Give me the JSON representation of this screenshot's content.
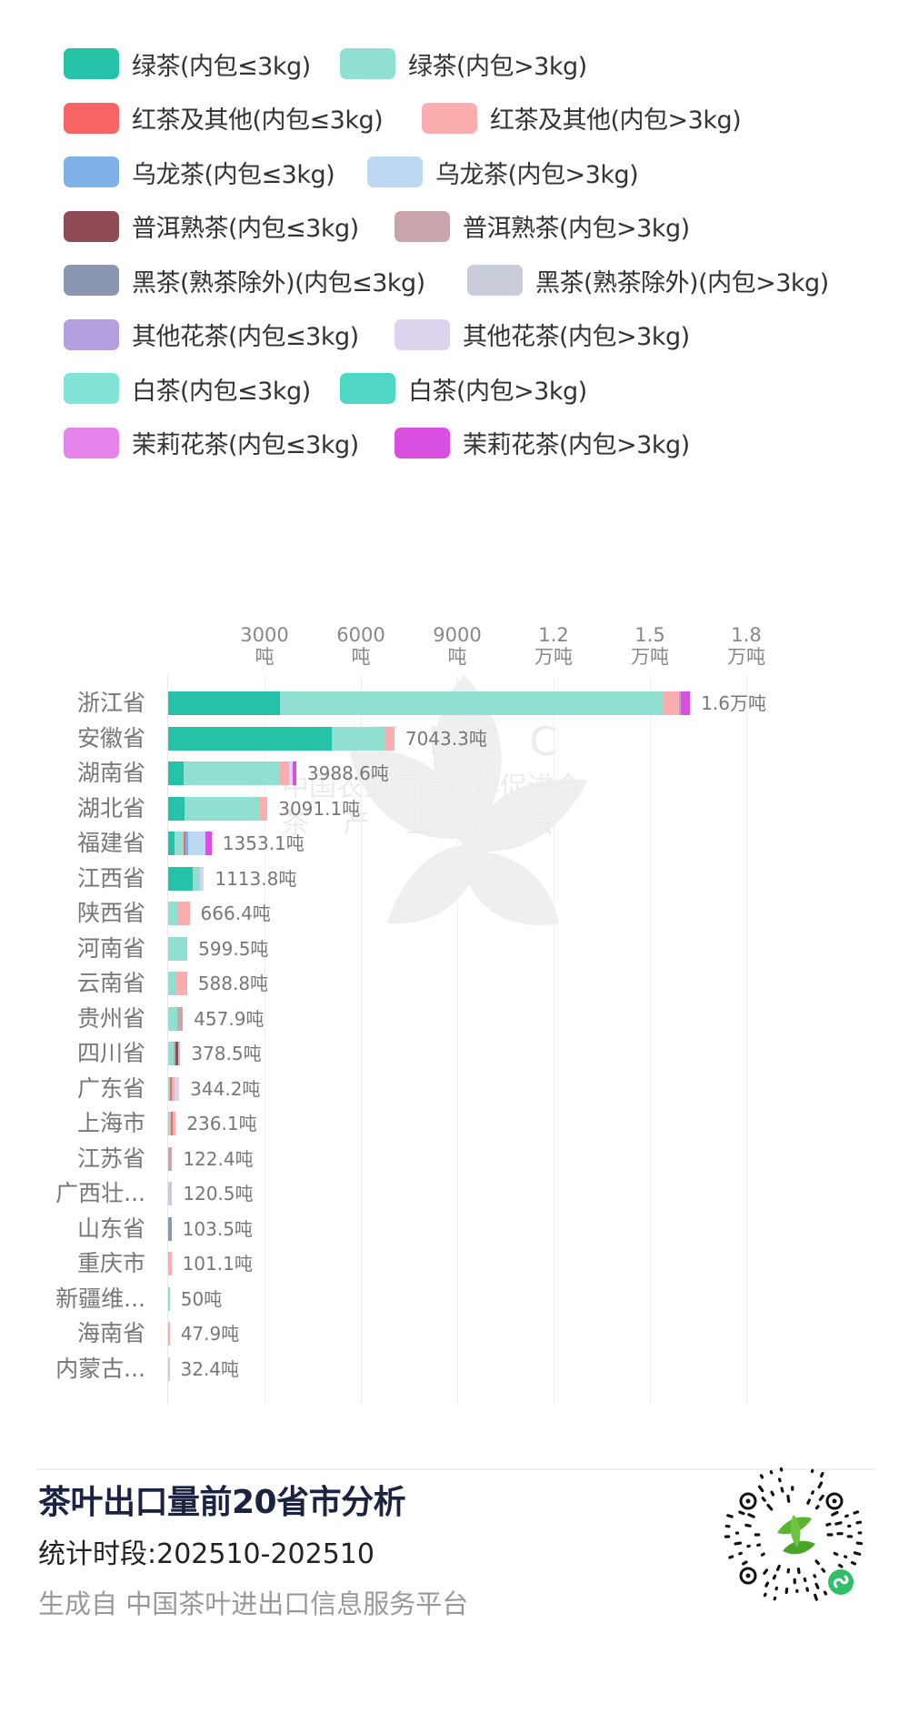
{
  "legend": [
    [
      {
        "label": "绿茶(内包≤3kg)",
        "color": "#26c2a8",
        "x": 0
      },
      {
        "label": "绿茶(内包>3kg)",
        "color": "#8fe0d0",
        "x": 304
      }
    ],
    [
      {
        "label": "红茶及其他(内包≤3kg)",
        "color": "#f96565",
        "x": 0
      },
      {
        "label": "红茶及其他(内包>3kg)",
        "color": "#fcaeae",
        "x": 394
      }
    ],
    [
      {
        "label": "乌龙茶(内包≤3kg)",
        "color": "#7eb2e6",
        "x": 0
      },
      {
        "label": "乌龙茶(内包>3kg)",
        "color": "#bdd8f2",
        "x": 334
      }
    ],
    [
      {
        "label": "普洱熟茶(内包≤3kg)",
        "color": "#8f4c57",
        "x": 0
      },
      {
        "label": "普洱熟茶(内包>3kg)",
        "color": "#c9a4aa",
        "x": 364
      }
    ],
    [
      {
        "label": "黑茶(熟茶除外)(内包≤3kg)",
        "color": "#8b97b2",
        "x": 0
      },
      {
        "label": "黑茶(熟茶除外)(内包>3kg)",
        "color": "#c8ccd9",
        "x": 444
      }
    ],
    [
      {
        "label": "其他花茶(内包≤3kg)",
        "color": "#b49fe0",
        "x": 0
      },
      {
        "label": "其他花茶(内包>3kg)",
        "color": "#dcd3ee",
        "x": 364
      }
    ],
    [
      {
        "label": "白茶(内包≤3kg)",
        "color": "#82e4d6",
        "x": 0
      },
      {
        "label": "白茶(内包>3kg)",
        "color": "#4dd7c4",
        "x": 304
      }
    ],
    [
      {
        "label": "茉莉花茶(内包≤3kg)",
        "color": "#e584ea",
        "x": 0
      },
      {
        "label": "茉莉花茶(内包>3kg)",
        "color": "#d94fe0",
        "x": 364
      }
    ]
  ],
  "watermark": {
    "abbr": "T  I  C  C",
    "org": "中国农业国际合作促进会",
    "branch": "茶  产  业  分  会"
  },
  "chart_data": {
    "type": "bar",
    "orientation": "horizontal",
    "stacked": true,
    "title": "茶叶出口量前20省市分析",
    "xlabel": "",
    "ylabel": "",
    "unit": "吨",
    "xlim": [
      0,
      18000
    ],
    "grid": true,
    "x_ticks": [
      {
        "value": 3000,
        "line1": "3000",
        "line2": "吨"
      },
      {
        "value": 6000,
        "line1": "6000",
        "line2": "吨"
      },
      {
        "value": 9000,
        "line1": "9000",
        "line2": "吨"
      },
      {
        "value": 12000,
        "line1": "1.2",
        "line2": "万吨"
      },
      {
        "value": 15000,
        "line1": "1.5",
        "line2": "万吨"
      },
      {
        "value": 18000,
        "line1": "1.8",
        "line2": "万吨"
      }
    ],
    "legend_position": "top",
    "series_names": [
      "绿茶(内包≤3kg)",
      "绿茶(内包>3kg)",
      "红茶及其他(内包≤3kg)",
      "红茶及其他(内包>3kg)",
      "乌龙茶(内包≤3kg)",
      "乌龙茶(内包>3kg)",
      "普洱熟茶(内包≤3kg)",
      "普洱熟茶(内包>3kg)",
      "黑茶(熟茶除外)(内包≤3kg)",
      "黑茶(熟茶除外)(内包>3kg)",
      "其他花茶(内包≤3kg)",
      "其他花茶(内包>3kg)",
      "白茶(内包≤3kg)",
      "白茶(内包>3kg)",
      "茉莉花茶(内包≤3kg)",
      "茉莉花茶(内包>3kg)"
    ],
    "series_colors": [
      "#26c2a8",
      "#8fe0d0",
      "#f96565",
      "#fcaeae",
      "#7eb2e6",
      "#bdd8f2",
      "#8f4c57",
      "#c9a4aa",
      "#8b97b2",
      "#c8ccd9",
      "#b49fe0",
      "#dcd3ee",
      "#82e4d6",
      "#4dd7c4",
      "#e584ea",
      "#d94fe0"
    ],
    "categories": [
      "浙江省",
      "安徽省",
      "湖南省",
      "湖北省",
      "福建省",
      "江西省",
      "陕西省",
      "河南省",
      "云南省",
      "贵州省",
      "四川省",
      "广东省",
      "上海市",
      "江苏省",
      "广西壮...",
      "山东省",
      "重庆市",
      "新疆维...",
      "海南省",
      "内蒙古..."
    ],
    "totals": [
      16000,
      7043.3,
      3988.6,
      3091.1,
      1353.1,
      1113.8,
      666.4,
      599.5,
      588.8,
      457.9,
      378.5,
      344.2,
      236.1,
      122.4,
      120.5,
      103.5,
      101.1,
      50,
      47.9,
      32.4
    ],
    "total_labels": [
      "1.6万吨",
      "7043.3吨",
      "3988.6吨",
      "3091.1吨",
      "1353.1吨",
      "1113.8吨",
      "666.4吨",
      "599.5吨",
      "588.8吨",
      "457.9吨",
      "378.5吨",
      "344.2吨",
      "236.1吨",
      "122.4吨",
      "120.5吨",
      "103.5吨",
      "101.1吨",
      "50吨",
      "47.9吨",
      "32.4吨"
    ],
    "segments": [
      [
        {
          "s": 0,
          "v": 3490
        },
        {
          "s": 1,
          "v": 11940
        },
        {
          "s": 3,
          "v": 470
        },
        {
          "s": 10,
          "v": 60
        },
        {
          "s": 15,
          "v": 290
        }
      ],
      [
        {
          "s": 0,
          "v": 5094
        },
        {
          "s": 1,
          "v": 1681
        },
        {
          "s": 3,
          "v": 268.3
        }
      ],
      [
        {
          "s": 0,
          "v": 470
        },
        {
          "s": 1,
          "v": 3000
        },
        {
          "s": 3,
          "v": 305
        },
        {
          "s": 11,
          "v": 100
        },
        {
          "s": 15,
          "v": 113.6
        }
      ],
      [
        {
          "s": 0,
          "v": 510
        },
        {
          "s": 1,
          "v": 2360
        },
        {
          "s": 3,
          "v": 221.1
        }
      ],
      [
        {
          "s": 0,
          "v": 190
        },
        {
          "s": 1,
          "v": 283
        },
        {
          "s": 2,
          "v": 75
        },
        {
          "s": 4,
          "v": 68
        },
        {
          "s": 5,
          "v": 537
        },
        {
          "s": 15,
          "v": 200.1
        }
      ],
      [
        {
          "s": 0,
          "v": 755
        },
        {
          "s": 1,
          "v": 235
        },
        {
          "s": 11,
          "v": 123.8
        }
      ],
      [
        {
          "s": 1,
          "v": 310
        },
        {
          "s": 3,
          "v": 356.4
        }
      ],
      [
        {
          "s": 1,
          "v": 599.5
        }
      ],
      [
        {
          "s": 1,
          "v": 245
        },
        {
          "s": 3,
          "v": 343.8
        }
      ],
      [
        {
          "s": 1,
          "v": 283
        },
        {
          "s": 7,
          "v": 174.9
        }
      ],
      [
        {
          "s": 1,
          "v": 170
        },
        {
          "s": 7,
          "v": 60
        },
        {
          "s": 6,
          "v": 94
        },
        {
          "s": 3,
          "v": 54.5
        }
      ],
      [
        {
          "s": 1,
          "v": 57
        },
        {
          "s": 2,
          "v": 57
        },
        {
          "s": 3,
          "v": 75
        },
        {
          "s": 11,
          "v": 155.2
        }
      ],
      [
        {
          "s": 1,
          "v": 90
        },
        {
          "s": 2,
          "v": 60
        },
        {
          "s": 3,
          "v": 86.1
        }
      ],
      [
        {
          "s": 7,
          "v": 122.4
        }
      ],
      [
        {
          "s": 9,
          "v": 120.5
        }
      ],
      [
        {
          "s": 8,
          "v": 103.5
        }
      ],
      [
        {
          "s": 3,
          "v": 101.1
        }
      ],
      [
        {
          "s": 1,
          "v": 50
        }
      ],
      [
        {
          "s": 3,
          "v": 47.9
        }
      ],
      [
        {
          "s": 9,
          "v": 32.4
        }
      ]
    ]
  },
  "footer": {
    "title": "茶叶出口量前20省市分析",
    "period": "统计时段:202510-202510",
    "source": "生成自 中国茶叶进出口信息服务平台",
    "qr_label": "mini-program-qr-code"
  }
}
